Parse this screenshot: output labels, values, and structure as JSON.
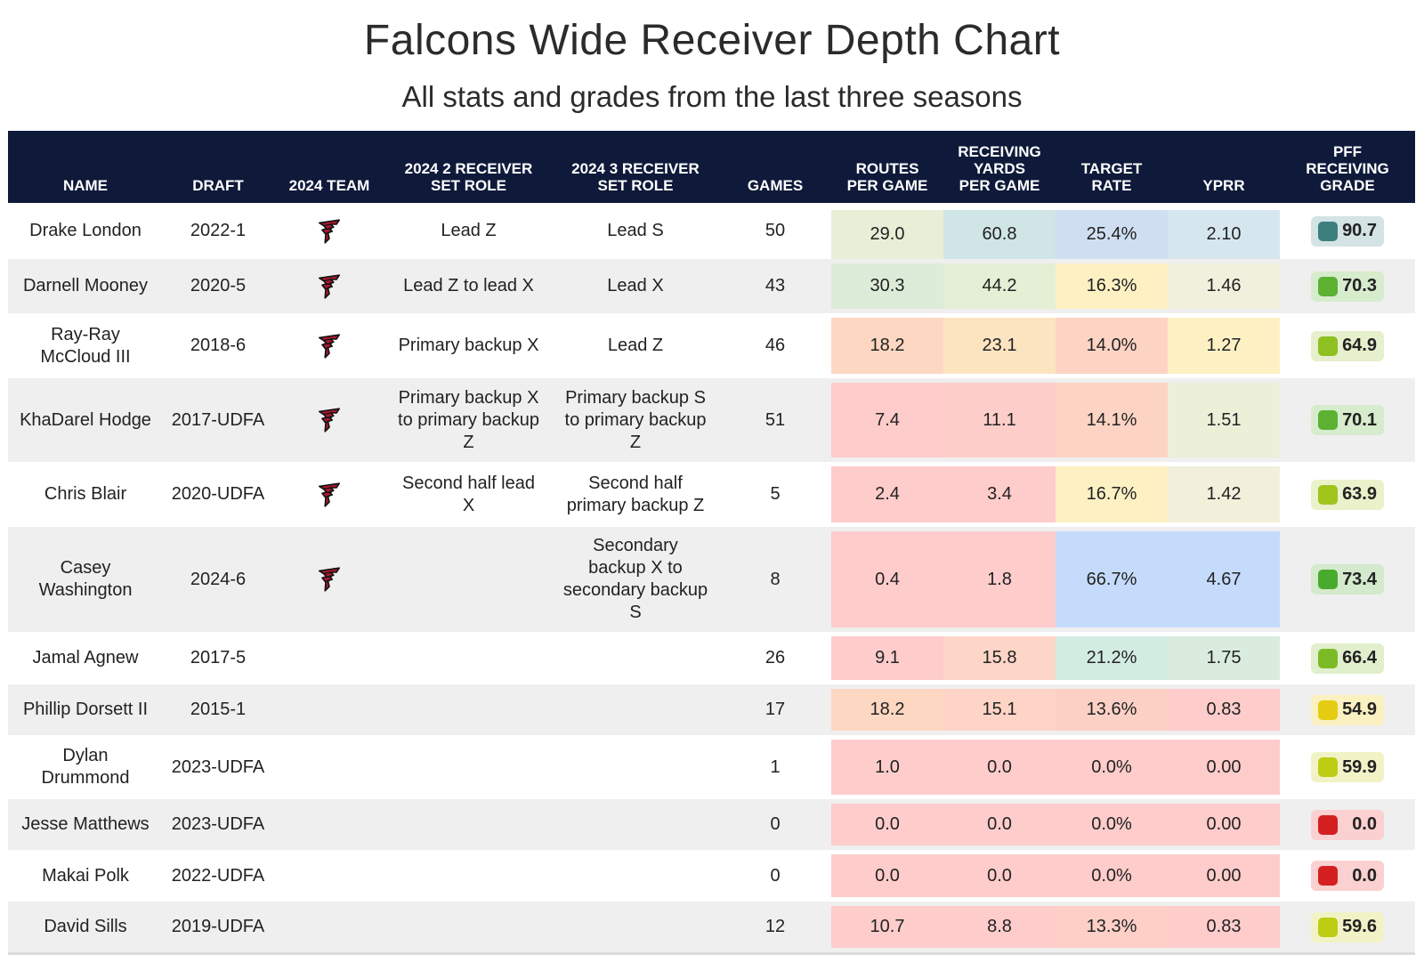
{
  "title": "Falcons Wide Receiver Depth Chart",
  "subtitle": "All stats and grades from the last three seasons",
  "headers": [
    {
      "key": "name",
      "label": "NAME"
    },
    {
      "key": "draft",
      "label": "DRAFT"
    },
    {
      "key": "team",
      "label": "2024 TEAM"
    },
    {
      "key": "role2",
      "label": "2024 2 RECEIVER\nSET ROLE"
    },
    {
      "key": "role3",
      "label": "2024 3 RECEIVER\nSET ROLE"
    },
    {
      "key": "games",
      "label": "GAMES"
    },
    {
      "key": "routes",
      "label": "ROUTES\nPER GAME"
    },
    {
      "key": "yards",
      "label": "RECEIVING\nYARDS\nPER GAME"
    },
    {
      "key": "target",
      "label": "TARGET\nRATE"
    },
    {
      "key": "yprr",
      "label": "YPRR"
    },
    {
      "key": "grade",
      "label": "PFF\nRECEIVING\nGRADE"
    }
  ],
  "team_logo_icon": "falcons-logo-icon",
  "chart_data": {
    "type": "table",
    "title": "Falcons Wide Receiver Depth Chart",
    "subtitle": "All stats and grades from the last three seasons",
    "rows": [
      {
        "name": "Drake London",
        "draft": "2022-1",
        "team": true,
        "role2": "Lead Z",
        "role3": "Lead S",
        "games": "50",
        "routes": "29.0",
        "yards": "60.8",
        "target": "25.4%",
        "yprr": "2.10",
        "grade": "90.7",
        "colors": {
          "routes": "#e8efd6",
          "yards": "#cfe5e6",
          "target": "#cfdff1",
          "yprr": "#d5e6ef",
          "grade_bg": "#d4e3e3",
          "grade_sw": "#3d7f7f"
        }
      },
      {
        "name": "Darnell Mooney",
        "draft": "2020-5",
        "team": true,
        "role2": "Lead Z to lead X",
        "role3": "Lead X",
        "games": "43",
        "routes": "30.3",
        "yards": "44.2",
        "target": "16.3%",
        "yprr": "1.46",
        "grade": "70.3",
        "colors": {
          "routes": "#dcecd9",
          "yards": "#e4efd6",
          "target": "#fdf1c4",
          "yprr": "#f1f0dc",
          "grade_bg": "#d7ebcd",
          "grade_sw": "#5cb132"
        }
      },
      {
        "name": "Ray-Ray\nMcCloud III",
        "draft": "2018-6",
        "team": true,
        "role2": "Primary backup X",
        "role3": "Lead Z",
        "games": "46",
        "routes": "18.2",
        "yards": "23.1",
        "target": "14.0%",
        "yprr": "1.27",
        "grade": "64.9",
        "colors": {
          "routes": "#fdd7c2",
          "yards": "#fde4c1",
          "target": "#fdd3c4",
          "yprr": "#fdf1c4",
          "grade_bg": "#e6f0cc",
          "grade_sw": "#8fc021"
        }
      },
      {
        "name": "KhaDarel Hodge",
        "draft": "2017-UDFA",
        "team": true,
        "role2": "Primary backup X\nto primary backup\nZ",
        "role3": "Primary backup S\nto primary backup\nZ",
        "games": "51",
        "routes": "7.4",
        "yards": "11.1",
        "target": "14.1%",
        "yprr": "1.51",
        "grade": "70.1",
        "colors": {
          "routes": "#fdcccb",
          "yards": "#fdcec9",
          "target": "#fdd4c4",
          "yprr": "#edf0d9",
          "grade_bg": "#d7ebcd",
          "grade_sw": "#5cb132"
        }
      },
      {
        "name": "Chris Blair",
        "draft": "2020-UDFA",
        "team": true,
        "role2": "Second half lead\nX",
        "role3": "Second half\nprimary backup Z",
        "games": "5",
        "routes": "2.4",
        "yards": "3.4",
        "target": "16.7%",
        "yprr": "1.42",
        "grade": "63.9",
        "colors": {
          "routes": "#fdcccb",
          "yards": "#fdcccb",
          "target": "#fdf1c4",
          "yprr": "#f2f0da",
          "grade_bg": "#ebf1cb",
          "grade_sw": "#a0c41c"
        }
      },
      {
        "name": "Casey\nWashington",
        "draft": "2024-6",
        "team": true,
        "role2": "",
        "role3": "Secondary\nbackup X to\nsecondary backup\nS",
        "games": "8",
        "routes": "0.4",
        "yards": "1.8",
        "target": "66.7%",
        "yprr": "4.67",
        "grade": "73.4",
        "colors": {
          "routes": "#fdcccb",
          "yards": "#fdcccb",
          "target": "#c5dbfb",
          "yprr": "#c5dbfb",
          "grade_bg": "#d3eacc",
          "grade_sw": "#48ab2e"
        }
      },
      {
        "name": "Jamal Agnew",
        "draft": "2017-5",
        "team": false,
        "role2": "",
        "role3": "",
        "games": "26",
        "routes": "9.1",
        "yards": "15.8",
        "target": "21.2%",
        "yprr": "1.75",
        "grade": "66.4",
        "colors": {
          "routes": "#fdcccb",
          "yards": "#fdd6c7",
          "target": "#d3ece2",
          "yprr": "#d9ecdd",
          "grade_bg": "#e2efcd",
          "grade_sw": "#7cbb25"
        }
      },
      {
        "name": "Phillip Dorsett II",
        "draft": "2015-1",
        "team": false,
        "role2": "",
        "role3": "",
        "games": "17",
        "routes": "18.2",
        "yards": "15.1",
        "target": "13.6%",
        "yprr": "0.83",
        "grade": "54.9",
        "colors": {
          "routes": "#fdd7c2",
          "yards": "#fdd4c6",
          "target": "#fdd0c6",
          "yprr": "#fdcccb",
          "grade_bg": "#faf0c0",
          "grade_sw": "#e4cc12"
        }
      },
      {
        "name": "Dylan\nDrummond",
        "draft": "2023-UDFA",
        "team": false,
        "role2": "",
        "role3": "",
        "games": "1",
        "routes": "1.0",
        "yards": "0.0",
        "target": "0.0%",
        "yprr": "0.00",
        "grade": "59.9",
        "colors": {
          "routes": "#fdcccb",
          "yards": "#fdcccb",
          "target": "#fdcccb",
          "yprr": "#fdcccb",
          "grade_bg": "#f1f3c6",
          "grade_sw": "#bfcc14"
        }
      },
      {
        "name": "Jesse Matthews",
        "draft": "2023-UDFA",
        "team": false,
        "role2": "",
        "role3": "",
        "games": "0",
        "routes": "0.0",
        "yards": "0.0",
        "target": "0.0%",
        "yprr": "0.00",
        "grade": "0.0",
        "colors": {
          "routes": "#fdcccb",
          "yards": "#fdcccb",
          "target": "#fdcccb",
          "yprr": "#fdcccb",
          "grade_bg": "#fbd0d0",
          "grade_sw": "#d42020"
        }
      },
      {
        "name": "Makai Polk",
        "draft": "2022-UDFA",
        "team": false,
        "role2": "",
        "role3": "",
        "games": "0",
        "routes": "0.0",
        "yards": "0.0",
        "target": "0.0%",
        "yprr": "0.00",
        "grade": "0.0",
        "colors": {
          "routes": "#fdcccb",
          "yards": "#fdcccb",
          "target": "#fdcccb",
          "yprr": "#fdcccb",
          "grade_bg": "#fbd0d0",
          "grade_sw": "#d42020"
        }
      },
      {
        "name": "David Sills",
        "draft": "2019-UDFA",
        "team": false,
        "role2": "",
        "role3": "",
        "games": "12",
        "routes": "10.7",
        "yards": "8.8",
        "target": "13.3%",
        "yprr": "0.83",
        "grade": "59.6",
        "colors": {
          "routes": "#fdcccb",
          "yards": "#fdcccb",
          "target": "#fdcfc7",
          "yprr": "#fdcccb",
          "grade_bg": "#f1f3c6",
          "grade_sw": "#bfcc14"
        }
      }
    ]
  }
}
